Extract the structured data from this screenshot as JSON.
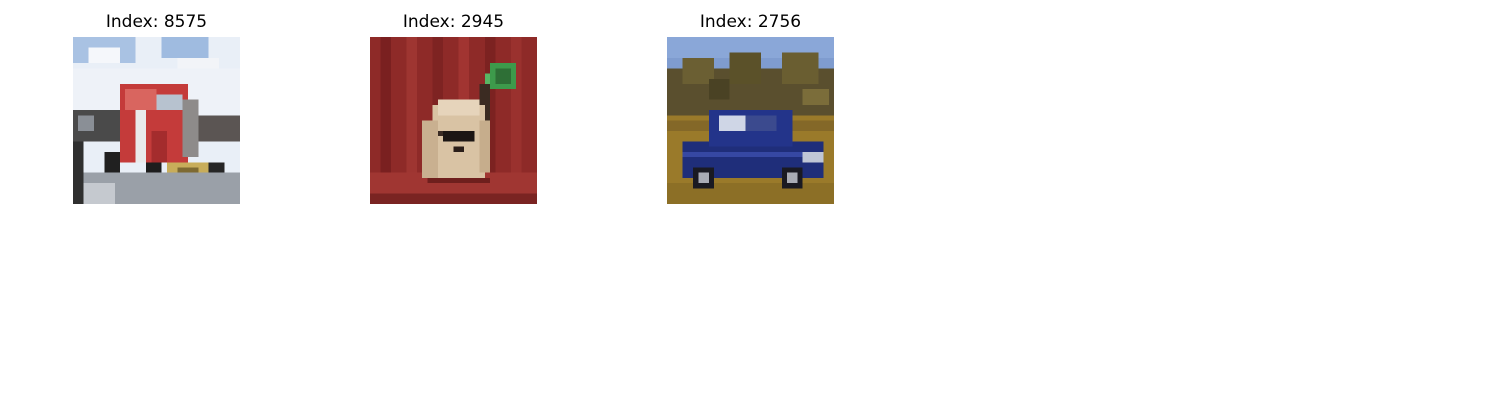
{
  "figure": {
    "panels": [
      {
        "title": "Index: 8575",
        "subject": "red semi truck on road under cloudy sky"
      },
      {
        "title": "Index: 2945",
        "subject": "small fluffy dog with sunglasses on red background"
      },
      {
        "title": "Index: 2756",
        "subject": "blue car parked on grass with trees behind"
      }
    ]
  }
}
